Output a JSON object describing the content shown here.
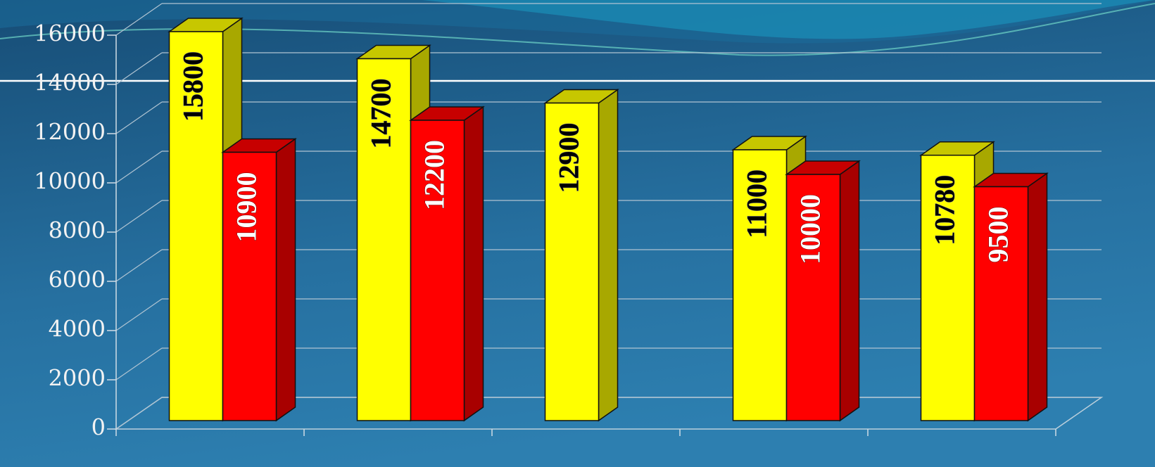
{
  "chart_data": {
    "type": "bar3d",
    "categories": [
      null,
      null,
      null,
      null,
      null
    ],
    "series": [
      {
        "color": "#ffff00",
        "values": [
          15800,
          14700,
          12900,
          11000,
          10780
        ]
      },
      {
        "color": "#ff0000",
        "values": [
          10900,
          12200,
          null,
          10000,
          9500
        ]
      }
    ],
    "ylim": [
      0,
      16000
    ],
    "yticks": [
      0,
      2000,
      4000,
      6000,
      8000,
      10000,
      12000,
      14000,
      16000
    ],
    "grid": true
  }
}
